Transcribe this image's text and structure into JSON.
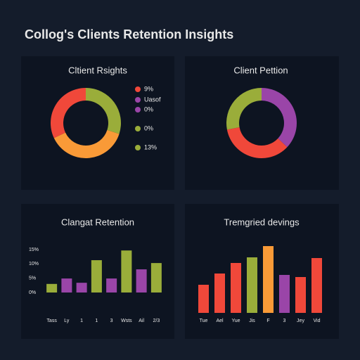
{
  "title": "Collog's Clients Retention Insights",
  "chart_data": [
    {
      "type": "donut",
      "title": "Cltient Rsights",
      "categories": [
        null,
        null,
        null
      ],
      "values": [
        30,
        38,
        32
      ],
      "colors": [
        "#9aad3a",
        "#f99a37",
        "#f0483a"
      ],
      "legend": [
        {
          "label": "9%",
          "color": "#f0483a"
        },
        {
          "label": "Uasof",
          "color": "#9a45a8"
        },
        {
          "label": "0%",
          "color": "#9a45a8"
        },
        {
          "label": "0%",
          "color": "#9aad3a"
        },
        {
          "label": "13%",
          "color": "#9aad3a"
        }
      ]
    },
    {
      "type": "donut",
      "title": "Client Pettion",
      "categories": [
        null,
        null,
        null
      ],
      "values": [
        37,
        35,
        28
      ],
      "colors": [
        "#9a45a8",
        "#f0483a",
        "#9aad3a"
      ]
    },
    {
      "type": "bar",
      "title": "Clangat Retention",
      "categories": [
        "Tass",
        "Ly",
        "1",
        "1",
        "3",
        "Wsts",
        "Ail",
        "2/3"
      ],
      "values": [
        3,
        4.9,
        3.4,
        11.3,
        4.9,
        14.7,
        8.1,
        10.3
      ],
      "colors": [
        "#9aad3a",
        "#9a45a8",
        "#9a45a8",
        "#9aad3a",
        "#9a45a8",
        "#9aad3a",
        "#9a45a8",
        "#9aad3a"
      ],
      "ylim": [
        0,
        15
      ],
      "yticks": [
        {
          "value": 15,
          "label": "15%"
        },
        {
          "value": 10,
          "label": "10%"
        },
        {
          "value": 5,
          "label": "5%"
        },
        {
          "value": 0,
          "label": "0%"
        }
      ]
    },
    {
      "type": "bar",
      "title": "Tremgried devings",
      "categories": [
        "Tue",
        "Ael",
        "Yue",
        "Jis",
        "F",
        "3",
        "Jey",
        "Vid"
      ],
      "values": [
        40,
        56,
        71,
        79,
        95,
        54,
        51,
        78
      ],
      "colors": [
        "#f0483a",
        "#f0483a",
        "#f0483a",
        "#9aad3a",
        "#f99a37",
        "#9a45a8",
        "#f0483a",
        "#f0483a"
      ],
      "ylim": [
        0,
        100
      ]
    }
  ]
}
